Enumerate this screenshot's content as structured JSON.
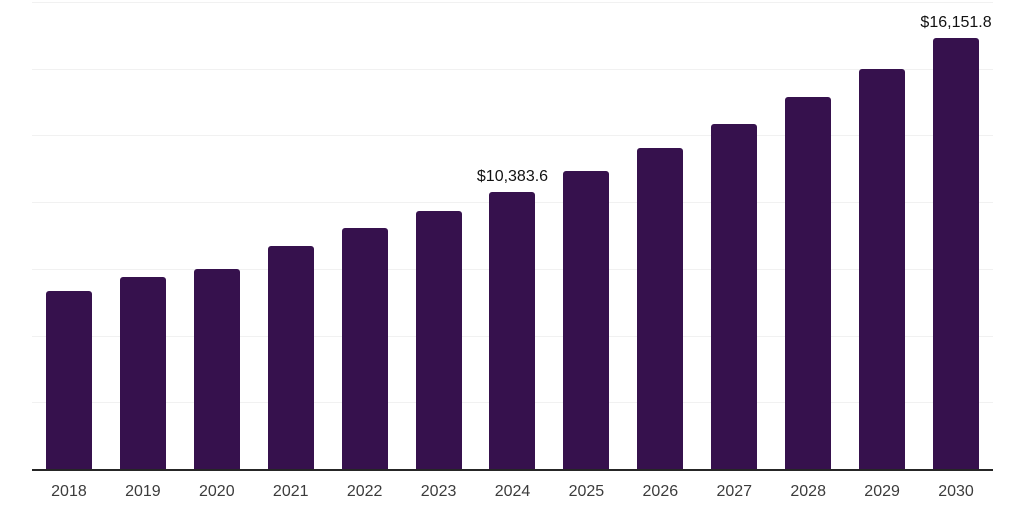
{
  "chart_data": {
    "type": "bar",
    "title": "",
    "xlabel": "",
    "ylabel": "",
    "categories": [
      "2018",
      "2019",
      "2020",
      "2021",
      "2022",
      "2023",
      "2024",
      "2025",
      "2026",
      "2027",
      "2028",
      "2029",
      "2030"
    ],
    "values": [
      6675,
      7200,
      7500,
      8360,
      9035,
      9670,
      10383.6,
      11175,
      12030,
      12945,
      13935,
      15000,
      16151.8
    ],
    "labeled_points": [
      {
        "category": "2024",
        "label": "$10,383.6"
      },
      {
        "category": "2030",
        "label": "$16,151.8"
      }
    ],
    "ylim": [
      0,
      17500
    ],
    "gridline_step": 2500,
    "grid": true,
    "y_axis_labels_visible": false,
    "legend": "none",
    "colors": {
      "bar": "#36114D",
      "gridline": "#f1f1f1",
      "axis_line": "#262626",
      "tick_label": "#3c3c3c",
      "data_label": "#121212",
      "background": "#ffffff"
    }
  }
}
